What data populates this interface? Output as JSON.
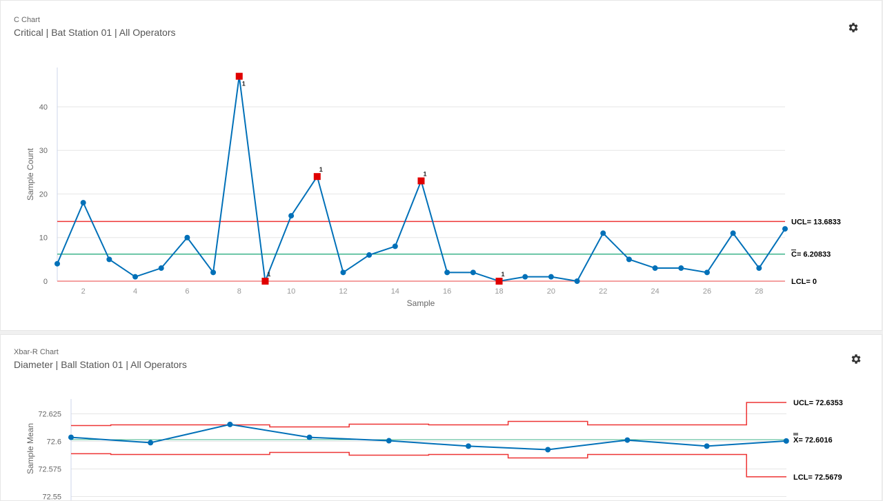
{
  "charts": [
    {
      "subtitle": "C Chart",
      "title": "Critical | Bat Station 01 | All Operators",
      "settings_icon": "gear-icon"
    },
    {
      "subtitle": "Xbar-R Chart",
      "title": "Diameter | Ball Station 01 | All Operators",
      "settings_icon": "gear-icon"
    }
  ],
  "chart_data": [
    {
      "type": "line",
      "xlabel": "Sample",
      "ylabel": "Sample Count",
      "x": [
        1,
        2,
        3,
        4,
        5,
        6,
        7,
        8,
        9,
        10,
        11,
        12,
        13,
        14,
        15,
        16,
        17,
        18,
        19,
        20,
        21,
        22,
        23,
        24,
        25,
        26,
        27,
        28,
        29
      ],
      "values": [
        4,
        18,
        5,
        1,
        3,
        10,
        2,
        47,
        0,
        15,
        24,
        2,
        6,
        8,
        23,
        2,
        2,
        0,
        1,
        1,
        0,
        11,
        5,
        3,
        3,
        2,
        11,
        3,
        12
      ],
      "violations": [
        8,
        9,
        11,
        15,
        18
      ],
      "violation_label": "1",
      "xticks": [
        "2",
        "4",
        "6",
        "8",
        "10",
        "12",
        "14",
        "16",
        "18",
        "20",
        "22",
        "24",
        "26",
        "28"
      ],
      "yticks": [
        "0",
        "10",
        "20",
        "30",
        "40"
      ],
      "xlim": [
        1,
        29
      ],
      "ylim": [
        0,
        49
      ],
      "ucl": 13.6833,
      "center": 6.20833,
      "lcl": 0,
      "ucl_label": "UCL= 13.6833",
      "center_label": "C= 6.20833",
      "lcl_label": "LCL= 0",
      "grid": true,
      "colors": {
        "line": "#0070b8",
        "ucl": "#ee3333",
        "center": "#3cb38a",
        "lcl": "#f08080",
        "violation": "#e00000"
      }
    },
    {
      "type": "line",
      "ylabel": "Sample Mean",
      "x": [
        1,
        2,
        3,
        4,
        5,
        6,
        7,
        8,
        9,
        10
      ],
      "values": [
        72.6037,
        72.5988,
        72.6154,
        72.6037,
        72.6006,
        72.5957,
        72.5925,
        72.6012,
        72.5957,
        72.6004
      ],
      "ucl_series": [
        72.6144,
        72.615,
        72.615,
        72.6131,
        72.6156,
        72.615,
        72.6181,
        72.615,
        72.615,
        72.6353
      ],
      "lcl_series": [
        72.5888,
        72.5881,
        72.5881,
        72.59,
        72.5875,
        72.5881,
        72.585,
        72.5881,
        72.5881,
        72.5679
      ],
      "center": 72.6016,
      "yticks": [
        "72.55",
        "72.575",
        "72.6",
        "72.625"
      ],
      "ylim": [
        72.55,
        72.64
      ],
      "ucl_label": "UCL= 72.6353",
      "center_label": "X= 72.6016",
      "lcl_label": "LCL= 72.5679",
      "grid": true,
      "colors": {
        "line": "#0070b8",
        "ucl": "#ee3333",
        "center": "#3cb38a",
        "lcl": "#ee3333"
      }
    }
  ]
}
